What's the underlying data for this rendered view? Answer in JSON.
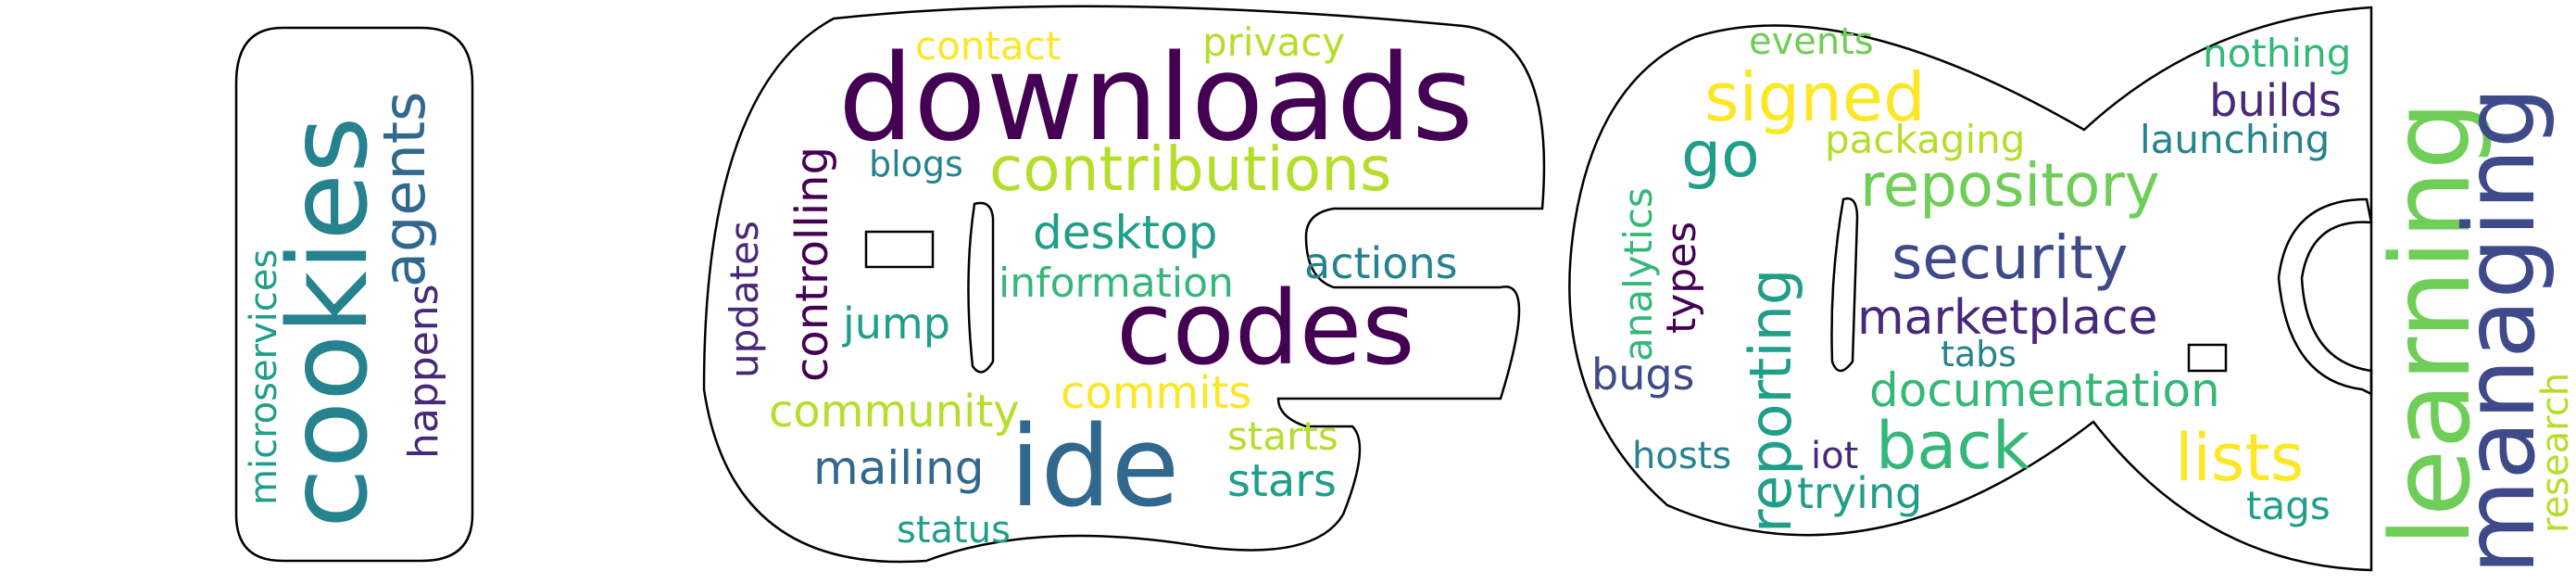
{
  "palette": {
    "dark_purple": "#440154",
    "purple": "#482878",
    "indigo": "#3e4a89",
    "blue": "#31688e",
    "teal": "#26828e",
    "green_teal": "#1f9e89",
    "green": "#35b779",
    "lime": "#6ece58",
    "yellow_green": "#b5de2b",
    "yellow": "#fde725",
    "outline": "#000000"
  },
  "words": [
    {
      "text": "cookies",
      "color": "#26828e"
    },
    {
      "text": "agents",
      "color": "#31688e"
    },
    {
      "text": "microservices",
      "color": "#1f9e89"
    },
    {
      "text": "happens",
      "color": "#482878"
    },
    {
      "text": "downloads",
      "color": "#440154"
    },
    {
      "text": "contributions",
      "color": "#b5de2b"
    },
    {
      "text": "contact",
      "color": "#fde725"
    },
    {
      "text": "privacy",
      "color": "#b5de2b"
    },
    {
      "text": "blogs",
      "color": "#26828e"
    },
    {
      "text": "controlling",
      "color": "#440154"
    },
    {
      "text": "updates",
      "color": "#482878"
    },
    {
      "text": "desktop",
      "color": "#1f9e89"
    },
    {
      "text": "information",
      "color": "#35b779"
    },
    {
      "text": "actions",
      "color": "#26828e"
    },
    {
      "text": "codes",
      "color": "#440154"
    },
    {
      "text": "jump",
      "color": "#1f9e89"
    },
    {
      "text": "commits",
      "color": "#fde725"
    },
    {
      "text": "community",
      "color": "#b5de2b"
    },
    {
      "text": "ide",
      "color": "#31688e"
    },
    {
      "text": "starts",
      "color": "#b5de2b"
    },
    {
      "text": "mailing",
      "color": "#31688e"
    },
    {
      "text": "stars",
      "color": "#1f9e89"
    },
    {
      "text": "status",
      "color": "#1f9e89"
    },
    {
      "text": "events",
      "color": "#6ece58"
    },
    {
      "text": "signed",
      "color": "#fde725"
    },
    {
      "text": "nothing",
      "color": "#35b779"
    },
    {
      "text": "builds",
      "color": "#482878"
    },
    {
      "text": "go",
      "color": "#1f9e89"
    },
    {
      "text": "packaging",
      "color": "#b5de2b"
    },
    {
      "text": "launching",
      "color": "#26828e"
    },
    {
      "text": "repository",
      "color": "#6ece58"
    },
    {
      "text": "analytics",
      "color": "#35b779"
    },
    {
      "text": "types",
      "color": "#440154"
    },
    {
      "text": "reporting",
      "color": "#1f9e89"
    },
    {
      "text": "security",
      "color": "#3e4a89"
    },
    {
      "text": "marketplace",
      "color": "#482878"
    },
    {
      "text": "tabs",
      "color": "#26828e"
    },
    {
      "text": "documentation",
      "color": "#35b779"
    },
    {
      "text": "bugs",
      "color": "#3e4a89"
    },
    {
      "text": "back",
      "color": "#35b779"
    },
    {
      "text": "lists",
      "color": "#fde725"
    },
    {
      "text": "hosts",
      "color": "#26828e"
    },
    {
      "text": "iot",
      "color": "#482878"
    },
    {
      "text": "trying",
      "color": "#1f9e89"
    },
    {
      "text": "tags",
      "color": "#1f9e89"
    },
    {
      "text": "learning",
      "color": "#6ece58"
    },
    {
      "text": "managing",
      "color": "#3e4a89"
    },
    {
      "text": "research",
      "color": "#b5de2b"
    }
  ]
}
